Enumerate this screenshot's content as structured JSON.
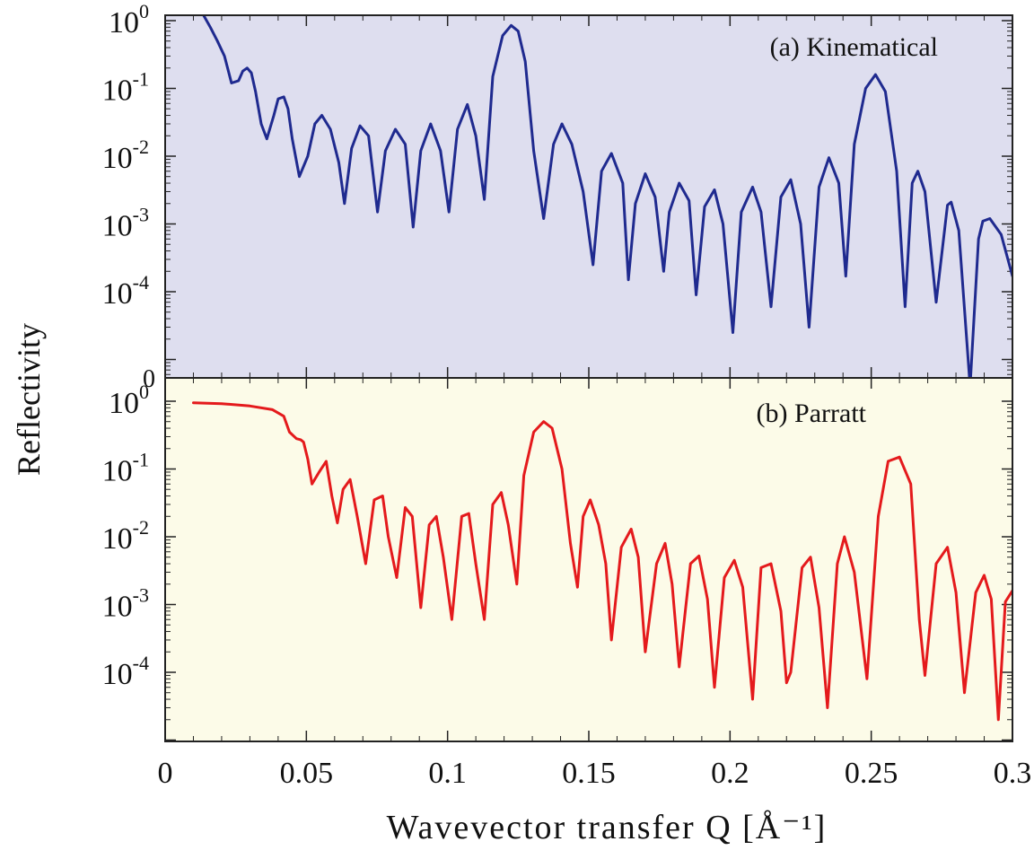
{
  "chart_data": {
    "type": "line",
    "xlabel": "Wavevector transfer Q [Å⁻¹]",
    "ylabel": "Reflectivity",
    "xlim": [
      0,
      0.3
    ],
    "x_ticks": [
      "0",
      "0.05",
      "0.1",
      "0.15",
      "0.2",
      "0.25",
      "0.3"
    ],
    "y_scale": "log",
    "panels": [
      {
        "label": "(a) Kinematical",
        "background": "#dedeef",
        "color": "#1f2a8f",
        "ylim": [
          1e-05,
          1
        ],
        "y_ticks": [
          "10^0",
          "10^-1",
          "10^-2",
          "10^-3",
          "10^-4"
        ],
        "bottom_tick": "0",
        "series": [
          {
            "x": [
              0.0136,
              0.016,
              0.0185,
              0.021,
              0.0235,
              0.026,
              0.0275,
              0.029,
              0.0305,
              0.032,
              0.034,
              0.036,
              0.0385,
              0.04,
              0.042,
              0.0435,
              0.045,
              0.0475,
              0.0505,
              0.053,
              0.0555,
              0.0585,
              0.0615,
              0.0635,
              0.066,
              0.069,
              0.072,
              0.0752,
              0.078,
              0.0815,
              0.085,
              0.0878,
              0.0905,
              0.094,
              0.0975,
              0.1005,
              0.1035,
              0.107,
              0.11,
              0.113,
              0.116,
              0.1195,
              0.1225,
              0.125,
              0.1275,
              0.1305,
              0.134,
              0.1375,
              0.1405,
              0.144,
              0.148,
              0.1515,
              0.1545,
              0.158,
              0.162,
              0.164,
              0.1665,
              0.17,
              0.1735,
              0.1765,
              0.1785,
              0.182,
              0.1855,
              0.188,
              0.191,
              0.1945,
              0.1975,
              0.201,
              0.204,
              0.208,
              0.211,
              0.2145,
              0.218,
              0.2215,
              0.225,
              0.228,
              0.2315,
              0.235,
              0.2385,
              0.241,
              0.244,
              0.248,
              0.2515,
              0.255,
              0.259,
              0.262,
              0.2645,
              0.2665,
              0.269,
              0.273,
              0.277,
              0.2783,
              0.281,
              0.285,
              0.288,
              0.2895,
              0.292,
              0.296,
              0.3
            ],
            "y": [
              1.2,
              0.8,
              0.5,
              0.3,
              0.12,
              0.13,
              0.18,
              0.2,
              0.17,
              0.09,
              0.03,
              0.018,
              0.04,
              0.07,
              0.075,
              0.05,
              0.018,
              0.005,
              0.01,
              0.03,
              0.04,
              0.025,
              0.008,
              0.002,
              0.013,
              0.028,
              0.02,
              0.0015,
              0.012,
              0.025,
              0.015,
              0.0009,
              0.012,
              0.03,
              0.012,
              0.0015,
              0.025,
              0.058,
              0.02,
              0.0023,
              0.15,
              0.6,
              0.85,
              0.7,
              0.25,
              0.012,
              0.0012,
              0.015,
              0.03,
              0.015,
              0.003,
              0.00025,
              0.006,
              0.011,
              0.004,
              0.00015,
              0.002,
              0.0055,
              0.0025,
              0.0002,
              0.0015,
              0.004,
              0.0022,
              9e-05,
              0.0018,
              0.0032,
              0.001,
              2.5e-05,
              0.0015,
              0.0035,
              0.0015,
              6e-05,
              0.0025,
              0.0045,
              0.001,
              3e-05,
              0.0035,
              0.0095,
              0.004,
              0.00017,
              0.015,
              0.1,
              0.16,
              0.09,
              0.006,
              6e-05,
              0.004,
              0.006,
              0.003,
              7e-05,
              0.0019,
              0.0021,
              0.0008,
              4e-06,
              0.0006,
              0.0011,
              0.0012,
              0.0007,
              0.00017
            ]
          }
        ]
      },
      {
        "label": "(b) Parratt",
        "background": "#fcfbe8",
        "color": "#e41a1c",
        "ylim": [
          1e-05,
          1
        ],
        "y_ticks": [
          "10^0",
          "10^-1",
          "10^-2",
          "10^-3",
          "10^-4"
        ],
        "series": [
          {
            "x": [
              0.01,
              0.02,
              0.03,
              0.038,
              0.042,
              0.044,
              0.0465,
              0.048,
              0.049,
              0.0505,
              0.052,
              0.0545,
              0.057,
              0.059,
              0.061,
              0.063,
              0.0655,
              0.068,
              0.071,
              0.074,
              0.077,
              0.079,
              0.082,
              0.085,
              0.0875,
              0.0905,
              0.0935,
              0.096,
              0.0985,
              0.1015,
              0.105,
              0.1075,
              0.11,
              0.113,
              0.116,
              0.119,
              0.1215,
              0.1245,
              0.127,
              0.1305,
              0.134,
              0.137,
              0.1405,
              0.1435,
              0.146,
              0.148,
              0.1505,
              0.1535,
              0.156,
              0.158,
              0.1615,
              0.165,
              0.1675,
              0.17,
              0.174,
              0.177,
              0.1795,
              0.182,
              0.186,
              0.189,
              0.192,
              0.1945,
              0.198,
              0.2015,
              0.2045,
              0.208,
              0.211,
              0.2145,
              0.218,
              0.22,
              0.2215,
              0.2255,
              0.2285,
              0.2315,
              0.2345,
              0.238,
              0.2405,
              0.244,
              0.2485,
              0.2525,
              0.256,
              0.26,
              0.264,
              0.267,
              0.269,
              0.273,
              0.277,
              0.28,
              0.283,
              0.287,
              0.29,
              0.2925,
              0.295,
              0.2975,
              0.3
            ],
            "y": [
              0.95,
              0.92,
              0.85,
              0.75,
              0.6,
              0.35,
              0.28,
              0.27,
              0.25,
              0.14,
              0.06,
              0.09,
              0.13,
              0.04,
              0.016,
              0.05,
              0.07,
              0.02,
              0.004,
              0.035,
              0.04,
              0.01,
              0.0025,
              0.027,
              0.02,
              0.0009,
              0.015,
              0.02,
              0.005,
              0.0006,
              0.02,
              0.022,
              0.004,
              0.0006,
              0.03,
              0.045,
              0.015,
              0.002,
              0.08,
              0.35,
              0.5,
              0.4,
              0.1,
              0.008,
              0.0018,
              0.02,
              0.035,
              0.015,
              0.004,
              0.0003,
              0.007,
              0.013,
              0.005,
              0.0002,
              0.004,
              0.008,
              0.002,
              0.00012,
              0.004,
              0.0052,
              0.0012,
              6e-05,
              0.0025,
              0.0045,
              0.0018,
              4e-05,
              0.0035,
              0.004,
              0.0008,
              7e-05,
              0.0001,
              0.0035,
              0.005,
              0.0009,
              3e-05,
              0.004,
              0.01,
              0.003,
              8e-05,
              0.02,
              0.13,
              0.15,
              0.06,
              0.0006,
              9e-05,
              0.004,
              0.007,
              0.0015,
              5e-05,
              0.0015,
              0.0027,
              0.0012,
              2e-05,
              0.0011,
              0.0016
            ]
          }
        ]
      }
    ]
  }
}
